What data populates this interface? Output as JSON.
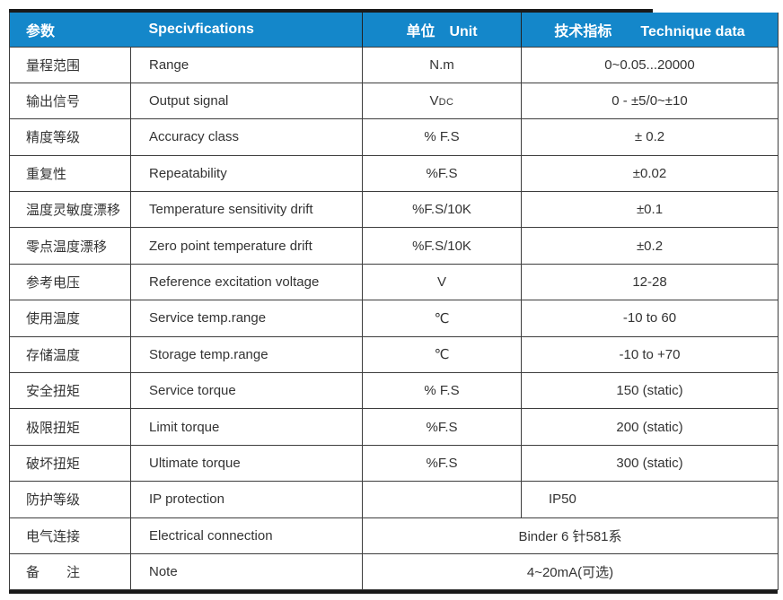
{
  "colors": {
    "header_bg": "#1487ca",
    "header_text": "#ffffff",
    "body_text": "#333333",
    "grid_line": "#3d3d3d",
    "heavy_line": "#1a1a1a"
  },
  "table": {
    "header": {
      "col1": "参数",
      "col2": "Specivfications",
      "col3": "单位　Unit",
      "col4": "技术指标　　Technique data"
    },
    "rows": [
      {
        "cn": "量程范围",
        "en": "Range",
        "unit": "N.m",
        "value": "0~0.05...20000"
      },
      {
        "cn": "输出信号",
        "en": "Output signal",
        "unit_v": "V",
        "unit_dc": "DC",
        "value": "0 - ±5/0~±10"
      },
      {
        "cn": "精度等级",
        "en": "Accuracy class",
        "unit": "% F.S",
        "value": "± 0.2"
      },
      {
        "cn": "重复性",
        "en": "Repeatability",
        "unit": "%F.S",
        "value": "±0.02"
      },
      {
        "cn": "温度灵敏度漂移",
        "en": "Temperature sensitivity drift",
        "unit": "%F.S/10K",
        "value": "±0.1"
      },
      {
        "cn": "零点温度漂移",
        "en": "Zero point temperature drift",
        "unit": "%F.S/10K",
        "value": "±0.2"
      },
      {
        "cn": "参考电压",
        "en": "Reference excitation voltage",
        "unit": "V",
        "value": "12-28"
      },
      {
        "cn": "使用温度",
        "en": "Service temp.range",
        "unit": "℃",
        "value": "-10 to 60"
      },
      {
        "cn": "存储温度",
        "en": "Storage temp.range",
        "unit": "℃",
        "value": "-10 to +70"
      },
      {
        "cn": "安全扭矩",
        "en": "Service torque",
        "unit": "% F.S",
        "value": "150 (static)"
      },
      {
        "cn": "极限扭矩",
        "en": "Limit torque",
        "unit": "%F.S",
        "value": "200 (static)"
      },
      {
        "cn": "破坏扭矩",
        "en": "Ultimate torque",
        "unit": "%F.S",
        "value": "300 (static)"
      },
      {
        "cn": "防护等级",
        "en": "IP protection",
        "unit": "",
        "value": "IP50"
      },
      {
        "cn": "电气连接",
        "en": "Electrical connection",
        "value": "Binder 6 针581系"
      },
      {
        "cn": "备　　注",
        "en": "Note",
        "value": "4~20mA(可选)"
      }
    ]
  }
}
